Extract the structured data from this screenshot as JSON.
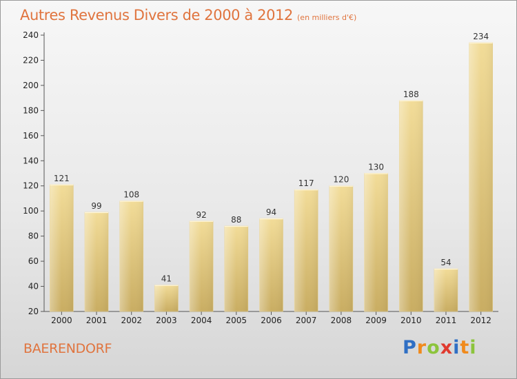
{
  "title": "Autres Revenus Divers de 2000 à 2012",
  "subtitle": "(en milliers d'€)",
  "place": "BAERENDORF",
  "logo": {
    "text": "Proxiti",
    "letters": [
      {
        "char": "P",
        "color": "#2f6fc4"
      },
      {
        "char": "r",
        "color": "#f08a1c"
      },
      {
        "char": "o",
        "color": "#8cc43c"
      },
      {
        "char": "x",
        "color": "#e03a2f"
      },
      {
        "char": "i",
        "color": "#2f6fc4"
      },
      {
        "char": "t",
        "color": "#f08a1c"
      },
      {
        "char": "i",
        "color": "#8cc43c"
      }
    ]
  },
  "colors": {
    "title": "#e0743e",
    "bar_top": "#f2dc98",
    "bar_bottom": "#c9ad62",
    "axis": "#555555"
  },
  "chart_data": {
    "type": "bar",
    "title": "Autres Revenus Divers de 2000 à 2012",
    "subtitle": "(en milliers d'€)",
    "xlabel": "",
    "ylabel": "",
    "categories": [
      "2000",
      "2001",
      "2002",
      "2003",
      "2004",
      "2005",
      "2006",
      "2007",
      "2008",
      "2009",
      "2010",
      "2011",
      "2012"
    ],
    "values": [
      121,
      99,
      108,
      41,
      92,
      88,
      94,
      117,
      120,
      130,
      188,
      54,
      234
    ],
    "ylim": [
      20,
      240
    ],
    "yticks": [
      20,
      40,
      60,
      80,
      100,
      120,
      140,
      160,
      180,
      200,
      220,
      240
    ],
    "grid": false,
    "legend": "none"
  }
}
